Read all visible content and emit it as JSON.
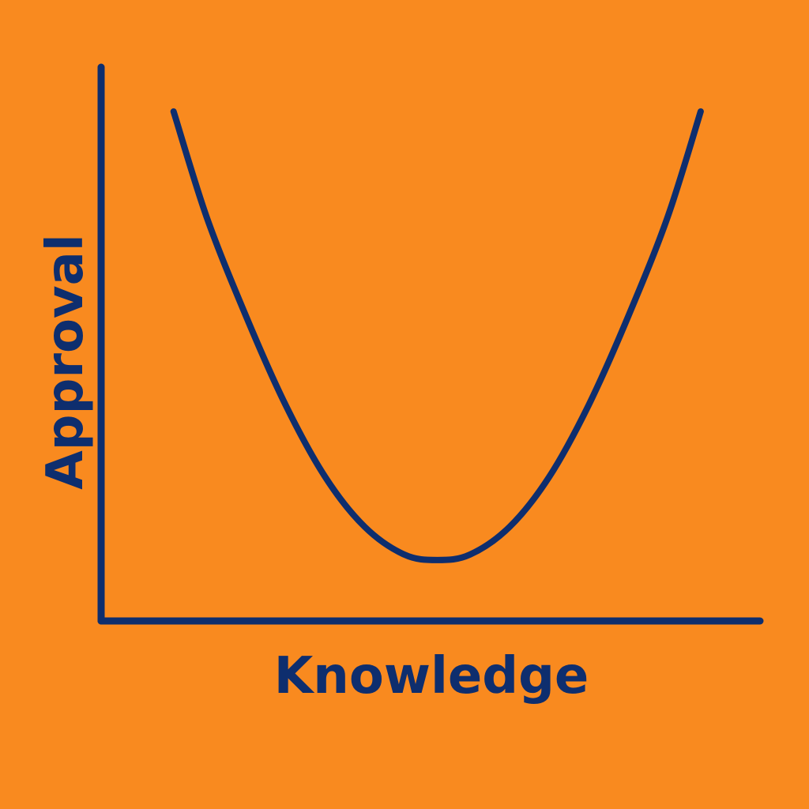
{
  "colors": {
    "background": "#F98A1F",
    "ink": "#0E2E6E"
  },
  "chart_data": {
    "type": "line",
    "title": "",
    "xlabel": "Knowledge",
    "ylabel": "Approval",
    "xlim": [
      0,
      100
    ],
    "ylim": [
      0,
      100
    ],
    "grid": false,
    "legend": "none",
    "x_ticks": false,
    "y_ticks": false,
    "series": [
      {
        "x": [
          11,
          16,
          22,
          28,
          34,
          40,
          46,
          51,
          56,
          62,
          68,
          74,
          80,
          86,
          91
        ],
        "y": [
          92,
          73,
          55,
          39,
          26,
          17,
          12,
          11,
          12,
          17,
          26,
          39,
          55,
          73,
          92
        ]
      }
    ]
  }
}
